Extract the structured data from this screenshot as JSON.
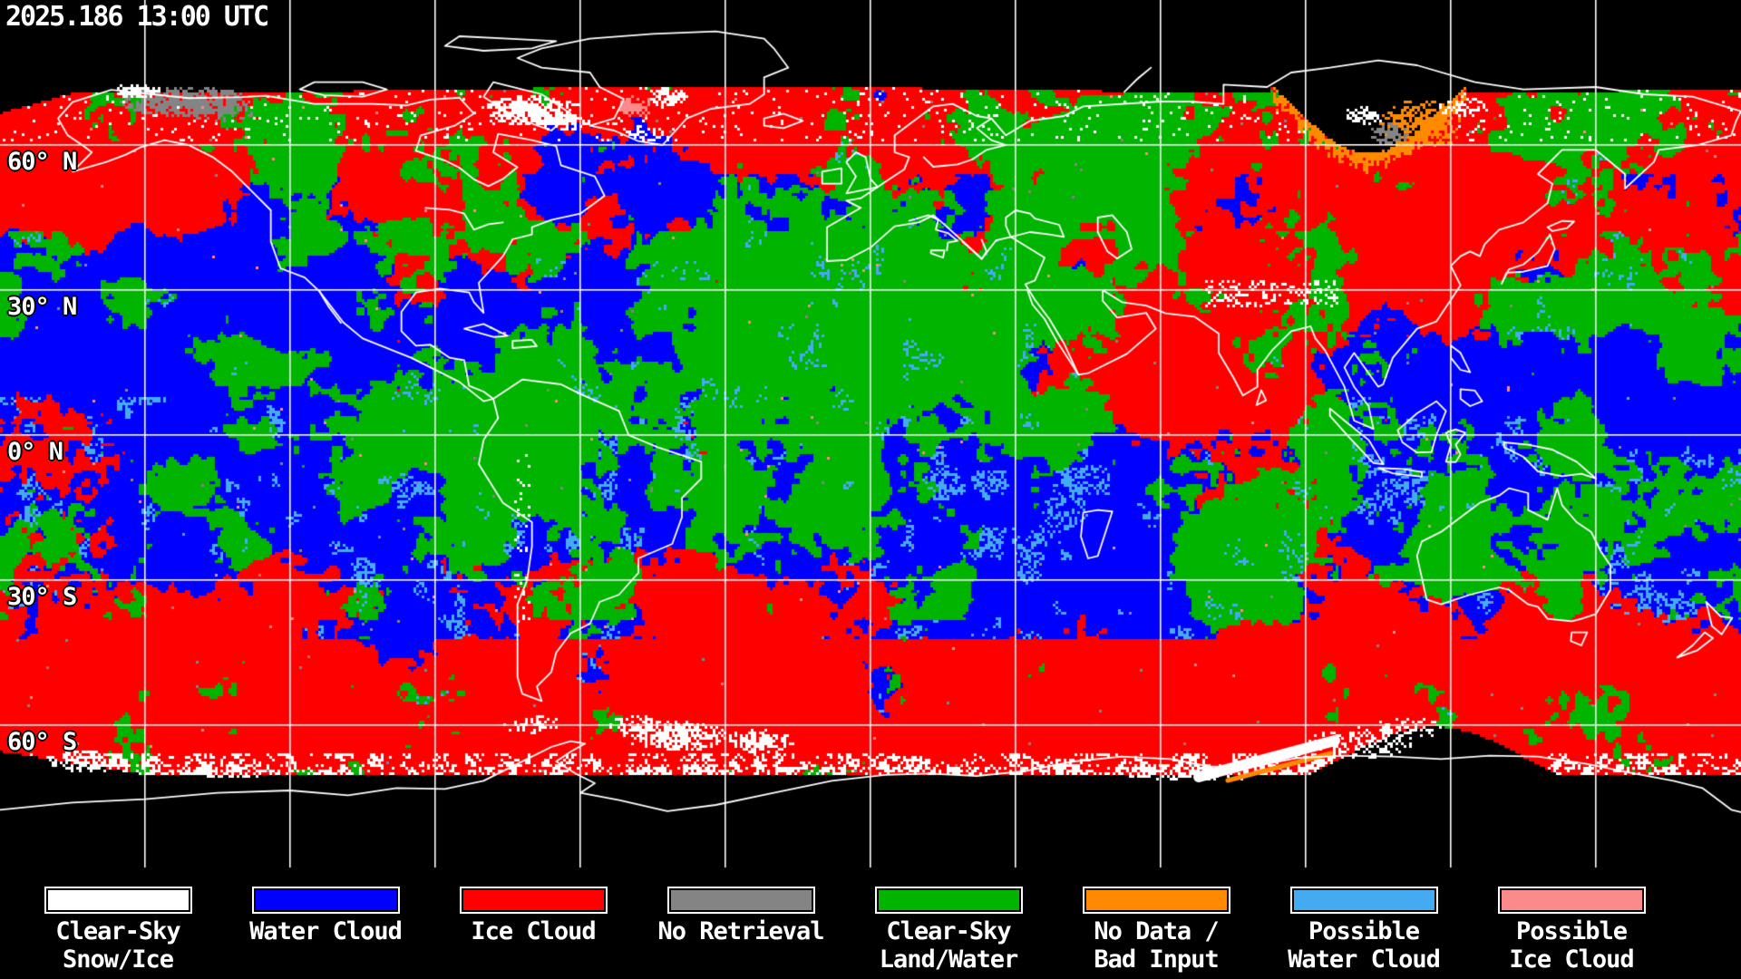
{
  "header": {
    "timestamp": "2025.186 13:00 UTC"
  },
  "map": {
    "latitude_labels": [
      {
        "text": "60° N"
      },
      {
        "text": "30° N"
      },
      {
        "text": "0° N"
      },
      {
        "text": "30° S"
      },
      {
        "text": "60° S"
      }
    ]
  },
  "legend": {
    "items": [
      {
        "key": "clear_sky_snow_ice",
        "label_line1": "Clear-Sky",
        "label_line2": "Snow/Ice",
        "color": "#FFFFFF"
      },
      {
        "key": "water_cloud",
        "label_line1": "Water Cloud",
        "label_line2": "",
        "color": "#0000FF"
      },
      {
        "key": "ice_cloud",
        "label_line1": "Ice Cloud",
        "label_line2": "",
        "color": "#FF0000"
      },
      {
        "key": "no_retrieval",
        "label_line1": "No Retrieval",
        "label_line2": "",
        "color": "#848484"
      },
      {
        "key": "clear_sky_land_water",
        "label_line1": "Clear-Sky",
        "label_line2": "Land/Water",
        "color": "#00B400"
      },
      {
        "key": "no_data_bad_input",
        "label_line1": "No Data /",
        "label_line2": "Bad Input",
        "color": "#FF8A00"
      },
      {
        "key": "possible_water_cloud",
        "label_line1": "Possible",
        "label_line2": "Water Cloud",
        "color": "#44AAF2"
      },
      {
        "key": "possible_ice_cloud",
        "label_line1": "Possible",
        "label_line2": "Ice Cloud",
        "color": "#FB8A8A"
      }
    ]
  }
}
